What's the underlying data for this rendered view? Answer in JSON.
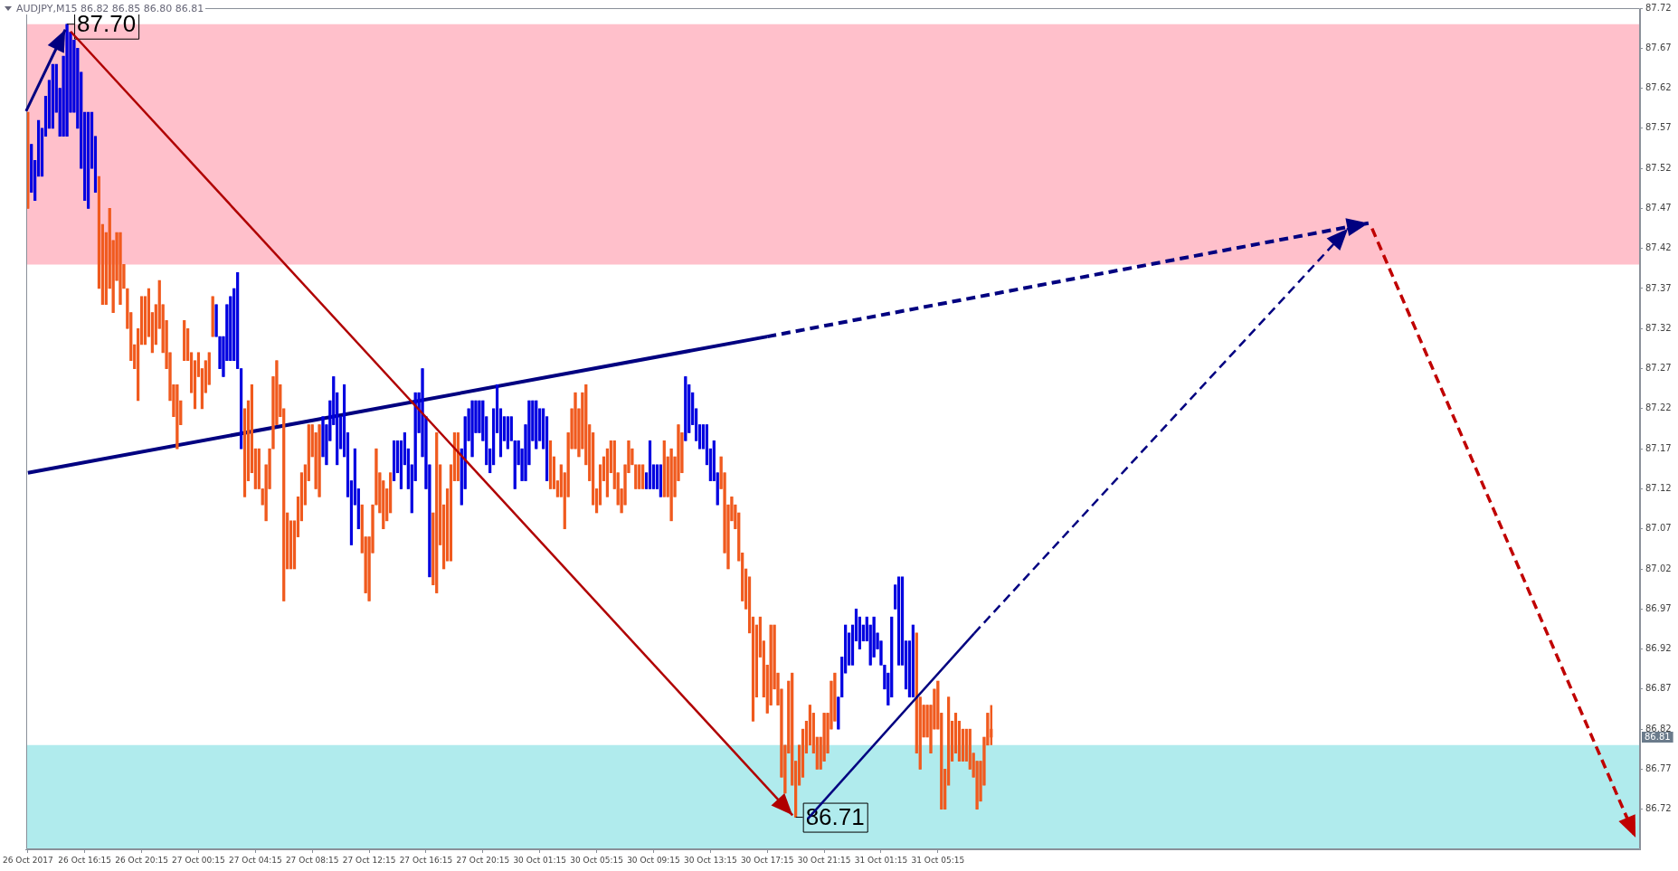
{
  "chart_data": {
    "type": "candlestick",
    "title": "AUDJPY,M15  86.82 86.85 86.80 86.81",
    "categories": [
      "26 Oct 2017",
      null,
      null,
      null,
      null,
      null,
      null,
      null,
      null,
      null,
      null,
      null,
      null,
      null,
      null,
      null,
      "26 Oct 16:15",
      null,
      null,
      null,
      null,
      null,
      null,
      null,
      null,
      null,
      null,
      null,
      null,
      null,
      null,
      null,
      "26 Oct 20:15",
      null,
      null,
      null,
      null,
      null,
      null,
      null,
      null,
      null,
      null,
      null,
      null,
      null,
      null,
      null,
      "27 Oct 00:15",
      null,
      null,
      null,
      null,
      null,
      null,
      null,
      null,
      null,
      null,
      null,
      null,
      null,
      null,
      null,
      "27 Oct 04:15",
      null,
      null,
      null,
      null,
      null,
      null,
      null,
      null,
      null,
      null,
      null,
      null,
      null,
      null,
      null,
      "27 Oct 08:15",
      null,
      null,
      null,
      null,
      null,
      null,
      null,
      null,
      null,
      null,
      null,
      null,
      null,
      null,
      null,
      "27 Oct 12:15",
      null,
      null,
      null,
      null,
      null,
      null,
      null,
      null,
      null,
      null,
      null,
      null,
      null,
      null,
      null,
      "27 Oct 16:15",
      null,
      null,
      null,
      null,
      null,
      null,
      null,
      null,
      null,
      null,
      null,
      null,
      null,
      null,
      null,
      "27 Oct 20:15",
      null,
      null,
      null,
      null,
      null,
      null,
      null,
      null,
      null,
      null,
      null,
      null,
      null,
      null,
      null,
      "30 Oct 01:15",
      null,
      null,
      null,
      null,
      null,
      null,
      null,
      null,
      null,
      null,
      null,
      null,
      null,
      null,
      null,
      "30 Oct 05:15",
      null,
      null,
      null,
      null,
      null,
      null,
      null,
      null,
      null,
      null,
      null,
      null,
      null,
      null,
      null,
      "30 Oct 09:15",
      null,
      null,
      null,
      null,
      null,
      null,
      null,
      null,
      null,
      null,
      null,
      null,
      null,
      null,
      null,
      "30 Oct 13:15",
      null,
      null,
      null,
      null,
      null,
      null,
      null,
      null,
      null,
      null,
      null,
      null,
      null,
      null,
      null,
      "30 Oct 17:15",
      null,
      null,
      null,
      null,
      null,
      null,
      null,
      null,
      null,
      null,
      null,
      null,
      null,
      null,
      null,
      "30 Oct 21:15",
      null,
      null,
      null,
      null,
      null,
      null,
      null,
      null,
      null,
      null,
      null,
      null,
      null,
      null,
      null,
      "31 Oct 01:15",
      null,
      null,
      null,
      null,
      null,
      null,
      null,
      null,
      null,
      null,
      null,
      null,
      null,
      null,
      null,
      "31 Oct 05:15",
      null,
      null,
      null,
      null,
      null,
      null,
      null,
      null,
      null,
      null,
      null,
      null,
      null,
      null,
      null,
      null,
      null,
      null,
      null,
      null,
      null,
      null,
      null,
      null,
      null,
      null,
      null,
      null,
      null,
      null,
      null,
      null,
      null,
      null,
      null,
      null,
      null,
      null,
      null,
      null,
      null,
      null,
      null,
      null,
      null,
      null,
      null,
      null,
      null,
      null,
      null,
      null,
      null,
      null,
      null,
      null,
      null,
      null,
      null,
      null,
      null,
      null,
      null,
      null,
      null,
      null,
      null,
      null,
      null,
      null,
      null,
      null,
      null,
      null,
      null,
      null,
      null,
      null,
      null,
      null,
      null,
      null,
      null,
      null,
      null,
      null,
      null,
      null,
      null,
      null,
      null,
      null,
      null,
      null,
      null,
      null,
      null,
      null,
      null,
      null,
      null,
      null,
      null,
      null,
      null,
      null,
      null,
      null,
      null,
      null,
      null,
      null,
      null,
      null,
      null,
      null,
      null,
      null,
      null,
      null,
      null,
      null,
      null,
      null,
      null,
      null,
      null,
      null,
      null,
      null,
      null,
      null,
      null,
      null,
      null,
      null,
      null,
      null,
      null,
      null,
      null,
      null,
      null,
      null,
      null,
      null,
      null,
      null,
      null,
      null,
      null,
      null,
      null,
      null,
      null,
      null,
      null,
      null,
      null,
      null,
      null,
      null,
      null,
      null,
      null,
      null,
      null,
      null,
      null,
      null,
      null,
      null,
      null,
      null,
      null,
      null,
      null,
      null,
      null,
      null,
      null,
      null,
      null,
      null,
      null,
      null,
      null,
      null,
      null,
      null,
      null,
      null,
      null,
      null,
      null,
      null,
      null
    ],
    "ylim": [
      86.67,
      87.72
    ],
    "yticks": [
      86.72,
      86.77,
      86.82,
      86.87,
      86.92,
      86.97,
      87.02,
      87.07,
      87.12,
      87.17,
      87.22,
      87.27,
      87.32,
      87.37,
      87.42,
      87.47,
      87.52,
      87.57,
      87.62,
      87.67,
      87.72
    ],
    "bands": [
      {
        "axis": "y",
        "from": 87.4,
        "to": 87.7,
        "color": "#ffc0cb"
      },
      {
        "axis": "y",
        "from": 86.67,
        "to": 86.8,
        "color": "#b0ebed"
      }
    ],
    "series": [
      {
        "type": "line",
        "color": "#000080",
        "x": [
          "26 Oct 2017",
          "30 Oct 17:15"
        ],
        "values": [
          87.14,
          87.31
        ]
      }
    ],
    "annotations": [
      {
        "text": "87.70",
        "y": 87.7
      },
      "86.71",
      "86.81"
    ],
    "ohlc": [
      [
        87.59,
        87.59,
        87.47,
        87.47
      ],
      [
        87.49,
        87.55,
        87.49,
        87.55
      ],
      [
        87.48,
        87.53,
        87.48,
        87.53
      ],
      [
        87.51,
        87.58,
        87.51,
        87.58
      ],
      [
        87.51,
        87.57,
        87.51,
        87.57
      ],
      [
        87.56,
        87.61,
        87.56,
        87.61
      ],
      [
        87.57,
        87.63,
        87.57,
        87.63
      ],
      [
        87.57,
        87.65,
        87.57,
        87.65
      ],
      [
        87.59,
        87.65,
        87.59,
        87.65
      ],
      [
        87.56,
        87.62,
        87.56,
        87.62
      ],
      [
        87.56,
        87.66,
        87.56,
        87.66
      ],
      [
        87.56,
        87.7,
        87.56,
        87.7
      ],
      [
        87.59,
        87.69,
        87.59,
        87.69
      ],
      [
        87.59,
        87.68,
        87.59,
        87.68
      ],
      [
        87.57,
        87.67,
        87.57,
        87.67
      ],
      [
        87.52,
        87.64,
        87.52,
        87.64
      ],
      [
        87.48,
        87.59,
        87.48,
        87.59
      ],
      [
        87.47,
        87.59,
        87.47,
        87.59
      ],
      [
        87.52,
        87.59,
        87.52,
        87.59
      ],
      [
        87.49,
        87.56,
        87.49,
        87.56
      ],
      [
        87.51,
        87.51,
        87.37,
        87.37
      ],
      [
        87.45,
        87.45,
        87.35,
        87.35
      ],
      [
        87.44,
        87.44,
        87.35,
        87.35
      ],
      [
        87.47,
        87.47,
        87.37,
        87.37
      ],
      [
        87.43,
        87.43,
        87.34,
        87.34
      ],
      [
        87.44,
        87.44,
        87.38,
        87.38
      ],
      [
        87.44,
        87.44,
        87.35,
        87.35
      ],
      [
        87.4,
        87.4,
        87.37,
        87.37
      ],
      [
        87.37,
        87.37,
        87.32,
        87.32
      ],
      [
        87.34,
        87.34,
        87.28,
        87.28
      ],
      [
        87.3,
        87.3,
        87.27,
        87.27
      ],
      [
        87.32,
        87.32,
        87.23,
        87.23
      ],
      [
        87.36,
        87.36,
        87.3,
        87.3
      ],
      [
        87.36,
        87.36,
        87.3,
        87.3
      ],
      [
        87.37,
        87.37,
        87.31,
        87.31
      ],
      [
        87.34,
        87.34,
        87.29,
        87.29
      ],
      [
        87.35,
        87.35,
        87.3,
        87.3
      ],
      [
        87.38,
        87.38,
        87.32,
        87.32
      ],
      [
        87.35,
        87.35,
        87.29,
        87.29
      ],
      [
        87.33,
        87.33,
        87.27,
        87.27
      ],
      [
        87.29,
        87.29,
        87.23,
        87.23
      ],
      [
        87.25,
        87.25,
        87.21,
        87.21
      ],
      [
        87.25,
        87.25,
        87.17,
        87.17
      ],
      [
        87.23,
        87.23,
        87.2,
        87.2
      ],
      [
        87.33,
        87.33,
        87.28,
        87.28
      ],
      [
        87.32,
        87.32,
        87.28,
        87.28
      ],
      [
        87.29,
        87.29,
        87.24,
        87.24
      ],
      [
        87.28,
        87.28,
        87.22,
        87.22
      ],
      [
        87.29,
        87.29,
        87.26,
        87.26
      ],
      [
        87.27,
        87.27,
        87.22,
        87.22
      ],
      [
        87.28,
        87.28,
        87.24,
        87.24
      ],
      [
        87.29,
        87.29,
        87.25,
        87.25
      ],
      [
        87.36,
        87.36,
        87.31,
        87.31
      ],
      [
        87.31,
        87.35,
        87.31,
        87.35
      ],
      [
        87.27,
        87.31,
        87.27,
        87.31
      ],
      [
        87.26,
        87.31,
        87.26,
        87.31
      ],
      [
        87.28,
        87.35,
        87.28,
        87.35
      ],
      [
        87.28,
        87.36,
        87.28,
        87.36
      ],
      [
        87.28,
        87.37,
        87.28,
        87.37
      ],
      [
        87.27,
        87.39,
        87.27,
        87.39
      ],
      [
        87.17,
        87.27,
        87.17,
        87.27
      ],
      [
        87.22,
        87.22,
        87.11,
        87.11
      ],
      [
        87.23,
        87.23,
        87.13,
        87.13
      ],
      [
        87.25,
        87.25,
        87.14,
        87.14
      ],
      [
        87.17,
        87.17,
        87.12,
        87.12
      ],
      [
        87.17,
        87.17,
        87.12,
        87.12
      ],
      [
        87.12,
        87.12,
        87.1,
        87.1
      ],
      [
        87.15,
        87.15,
        87.08,
        87.08
      ],
      [
        87.17,
        87.17,
        87.12,
        87.12
      ],
      [
        87.26,
        87.26,
        87.17,
        87.17
      ],
      [
        87.28,
        87.28,
        87.2,
        87.2
      ],
      [
        87.25,
        87.25,
        87.21,
        87.21
      ],
      [
        87.22,
        87.22,
        86.98,
        86.98
      ],
      [
        87.09,
        87.09,
        87.02,
        87.02
      ],
      [
        87.08,
        87.08,
        87.02,
        87.02
      ],
      [
        87.08,
        87.08,
        87.02,
        87.02
      ],
      [
        87.11,
        87.11,
        87.06,
        87.06
      ],
      [
        87.14,
        87.14,
        87.08,
        87.08
      ],
      [
        87.15,
        87.15,
        87.1,
        87.1
      ],
      [
        87.2,
        87.2,
        87.13,
        87.13
      ],
      [
        87.2,
        87.2,
        87.16,
        87.16
      ],
      [
        87.19,
        87.19,
        87.12,
        87.12
      ],
      [
        87.2,
        87.2,
        87.11,
        87.11
      ],
      [
        87.16,
        87.21,
        87.16,
        87.21
      ],
      [
        87.15,
        87.2,
        87.15,
        87.2
      ],
      [
        87.18,
        87.23,
        87.18,
        87.23
      ],
      [
        87.2,
        87.26,
        87.2,
        87.26
      ],
      [
        87.15,
        87.24,
        87.15,
        87.24
      ],
      [
        87.17,
        87.21,
        87.17,
        87.21
      ],
      [
        87.16,
        87.25,
        87.16,
        87.25
      ],
      [
        87.11,
        87.19,
        87.11,
        87.19
      ],
      [
        87.05,
        87.13,
        87.05,
        87.13
      ],
      [
        87.1,
        87.17,
        87.1,
        87.17
      ],
      [
        87.07,
        87.12,
        87.07,
        87.12
      ],
      [
        87.1,
        87.1,
        87.04,
        87.04
      ],
      [
        87.06,
        87.06,
        86.99,
        86.99
      ],
      [
        87.06,
        87.06,
        86.98,
        86.98
      ],
      [
        87.1,
        87.1,
        87.04,
        87.04
      ],
      [
        87.17,
        87.17,
        87.1,
        87.1
      ],
      [
        87.14,
        87.14,
        87.09,
        87.09
      ],
      [
        87.13,
        87.13,
        87.07,
        87.07
      ],
      [
        87.12,
        87.12,
        87.08,
        87.08
      ],
      [
        87.14,
        87.14,
        87.09,
        87.09
      ],
      [
        87.13,
        87.18,
        87.13,
        87.18
      ],
      [
        87.14,
        87.18,
        87.14,
        87.18
      ],
      [
        87.12,
        87.18,
        87.12,
        87.18
      ],
      [
        87.15,
        87.19,
        87.15,
        87.19
      ],
      [
        87.12,
        87.17,
        87.12,
        87.17
      ],
      [
        87.09,
        87.15,
        87.09,
        87.15
      ],
      [
        87.13,
        87.24,
        87.13,
        87.24
      ],
      [
        87.19,
        87.24,
        87.19,
        87.24
      ],
      [
        87.16,
        87.27,
        87.16,
        87.27
      ],
      [
        87.12,
        87.21,
        87.12,
        87.21
      ],
      [
        87.01,
        87.15,
        87.01,
        87.15
      ],
      [
        87.09,
        87.09,
        87.0,
        87.0
      ],
      [
        87.19,
        87.19,
        86.99,
        86.99
      ],
      [
        87.15,
        87.15,
        87.05,
        87.05
      ],
      [
        87.1,
        87.1,
        87.02,
        87.02
      ],
      [
        87.12,
        87.12,
        87.03,
        87.03
      ],
      [
        87.15,
        87.15,
        87.03,
        87.03
      ],
      [
        87.19,
        87.19,
        87.13,
        87.13
      ],
      [
        87.19,
        87.19,
        87.13,
        87.13
      ],
      [
        87.1,
        87.17,
        87.1,
        87.17
      ],
      [
        87.12,
        87.21,
        87.12,
        87.21
      ],
      [
        87.18,
        87.22,
        87.18,
        87.22
      ],
      [
        87.16,
        87.23,
        87.16,
        87.23
      ],
      [
        87.19,
        87.23,
        87.19,
        87.23
      ],
      [
        87.19,
        87.23,
        87.19,
        87.23
      ],
      [
        87.18,
        87.23,
        87.18,
        87.23
      ],
      [
        87.15,
        87.21,
        87.15,
        87.21
      ],
      [
        87.14,
        87.17,
        87.14,
        87.17
      ],
      [
        87.15,
        87.22,
        87.15,
        87.22
      ],
      [
        87.19,
        87.25,
        87.19,
        87.25
      ],
      [
        87.16,
        87.22,
        87.16,
        87.22
      ],
      [
        87.18,
        87.21,
        87.18,
        87.21
      ],
      [
        87.17,
        87.21,
        87.17,
        87.21
      ],
      [
        87.18,
        87.21,
        87.18,
        87.21
      ],
      [
        87.12,
        87.18,
        87.12,
        87.18
      ],
      [
        87.15,
        87.18,
        87.15,
        87.18
      ],
      [
        87.13,
        87.17,
        87.13,
        87.17
      ],
      [
        87.13,
        87.2,
        87.13,
        87.2
      ],
      [
        87.15,
        87.23,
        87.15,
        87.23
      ],
      [
        87.18,
        87.23,
        87.18,
        87.23
      ],
      [
        87.17,
        87.23,
        87.17,
        87.23
      ],
      [
        87.18,
        87.22,
        87.18,
        87.22
      ],
      [
        87.17,
        87.22,
        87.17,
        87.22
      ],
      [
        87.13,
        87.21,
        87.13,
        87.21
      ],
      [
        87.18,
        87.18,
        87.12,
        87.12
      ],
      [
        87.16,
        87.16,
        87.12,
        87.12
      ],
      [
        87.13,
        87.13,
        87.11,
        87.11
      ],
      [
        87.15,
        87.15,
        87.11,
        87.11
      ],
      [
        87.14,
        87.14,
        87.07,
        87.07
      ],
      [
        87.19,
        87.19,
        87.11,
        87.11
      ],
      [
        87.22,
        87.22,
        87.17,
        87.17
      ],
      [
        87.24,
        87.24,
        87.17,
        87.17
      ],
      [
        87.22,
        87.22,
        87.16,
        87.16
      ],
      [
        87.24,
        87.24,
        87.17,
        87.17
      ],
      [
        87.25,
        87.25,
        87.15,
        87.15
      ],
      [
        87.2,
        87.2,
        87.13,
        87.13
      ],
      [
        87.19,
        87.19,
        87.1,
        87.1
      ],
      [
        87.12,
        87.12,
        87.09,
        87.09
      ],
      [
        87.15,
        87.15,
        87.1,
        87.1
      ],
      [
        87.16,
        87.16,
        87.13,
        87.13
      ],
      [
        87.17,
        87.17,
        87.11,
        87.11
      ],
      [
        87.18,
        87.18,
        87.14,
        87.14
      ],
      [
        87.18,
        87.18,
        87.12,
        87.12
      ],
      [
        87.14,
        87.14,
        87.1,
        87.1
      ],
      [
        87.12,
        87.12,
        87.09,
        87.09
      ],
      [
        87.15,
        87.15,
        87.1,
        87.1
      ],
      [
        87.18,
        87.18,
        87.14,
        87.14
      ],
      [
        87.17,
        87.17,
        87.15,
        87.15
      ],
      [
        87.15,
        87.15,
        87.12,
        87.12
      ],
      [
        87.15,
        87.15,
        87.12,
        87.12
      ],
      [
        87.15,
        87.15,
        87.12,
        87.12
      ],
      [
        87.12,
        87.14,
        87.12,
        87.14
      ],
      [
        87.12,
        87.18,
        87.12,
        87.18
      ],
      [
        87.12,
        87.15,
        87.12,
        87.15
      ],
      [
        87.12,
        87.15,
        87.12,
        87.15
      ],
      [
        87.11,
        87.15,
        87.11,
        87.15
      ],
      [
        87.18,
        87.18,
        87.11,
        87.11
      ],
      [
        87.16,
        87.16,
        87.11,
        87.11
      ],
      [
        87.17,
        87.17,
        87.08,
        87.08
      ],
      [
        87.16,
        87.16,
        87.11,
        87.11
      ],
      [
        87.2,
        87.2,
        87.13,
        87.13
      ],
      [
        87.19,
        87.19,
        87.14,
        87.14
      ],
      [
        87.18,
        87.26,
        87.18,
        87.26
      ],
      [
        87.19,
        87.25,
        87.19,
        87.25
      ],
      [
        87.2,
        87.24,
        87.2,
        87.24
      ],
      [
        87.18,
        87.22,
        87.18,
        87.22
      ],
      [
        87.17,
        87.2,
        87.17,
        87.2
      ],
      [
        87.17,
        87.2,
        87.17,
        87.2
      ],
      [
        87.15,
        87.2,
        87.15,
        87.2
      ],
      [
        87.13,
        87.17,
        87.13,
        87.17
      ],
      [
        87.13,
        87.18,
        87.13,
        87.18
      ],
      [
        87.1,
        87.14,
        87.1,
        87.14
      ],
      [
        87.16,
        87.16,
        87.12,
        87.12
      ],
      [
        87.14,
        87.14,
        87.04,
        87.04
      ],
      [
        87.1,
        87.1,
        87.02,
        87.02
      ],
      [
        87.11,
        87.11,
        87.08,
        87.08
      ],
      [
        87.1,
        87.1,
        87.07,
        87.07
      ],
      [
        87.09,
        87.09,
        87.03,
        87.03
      ],
      [
        87.04,
        87.04,
        86.98,
        86.98
      ],
      [
        87.02,
        87.02,
        86.97,
        86.97
      ],
      [
        87.01,
        87.01,
        86.94,
        86.94
      ],
      [
        86.96,
        86.96,
        86.83,
        86.83
      ],
      [
        86.95,
        86.95,
        86.86,
        86.86
      ],
      [
        86.96,
        86.96,
        86.91,
        86.91
      ],
      [
        86.93,
        86.93,
        86.86,
        86.86
      ],
      [
        86.9,
        86.9,
        86.84,
        86.84
      ],
      [
        86.95,
        86.95,
        86.85,
        86.85
      ],
      [
        86.95,
        86.95,
        86.87,
        86.87
      ],
      [
        86.89,
        86.89,
        86.85,
        86.85
      ],
      [
        86.87,
        86.87,
        86.76,
        86.76
      ],
      [
        86.8,
        86.8,
        86.74,
        86.74
      ],
      [
        86.88,
        86.88,
        86.79,
        86.79
      ],
      [
        86.89,
        86.89,
        86.75,
        86.75
      ],
      [
        86.78,
        86.78,
        86.71,
        86.71
      ],
      [
        86.8,
        86.8,
        86.75,
        86.75
      ],
      [
        86.82,
        86.82,
        86.76,
        86.76
      ],
      [
        86.83,
        86.83,
        86.79,
        86.79
      ],
      [
        86.85,
        86.85,
        86.8,
        86.8
      ],
      [
        86.84,
        86.84,
        86.79,
        86.79
      ],
      [
        86.81,
        86.81,
        86.77,
        86.77
      ],
      [
        86.81,
        86.81,
        86.77,
        86.77
      ],
      [
        86.84,
        86.84,
        86.78,
        86.78
      ],
      [
        86.84,
        86.84,
        86.79,
        86.79
      ],
      [
        86.88,
        86.88,
        86.82,
        86.82
      ],
      [
        86.89,
        86.89,
        86.83,
        86.83
      ],
      [
        86.82,
        86.86,
        86.82,
        86.86
      ],
      [
        86.86,
        86.91,
        86.86,
        86.91
      ],
      [
        86.89,
        86.95,
        86.89,
        86.95
      ],
      [
        86.9,
        86.94,
        86.9,
        86.94
      ],
      [
        86.9,
        86.95,
        86.9,
        86.95
      ],
      [
        86.93,
        86.97,
        86.93,
        86.97
      ],
      [
        86.92,
        86.96,
        86.92,
        86.96
      ],
      [
        86.93,
        86.95,
        86.93,
        86.95
      ],
      [
        86.93,
        86.96,
        86.93,
        86.96
      ],
      [
        86.9,
        86.95,
        86.9,
        86.95
      ],
      [
        86.91,
        86.96,
        86.91,
        86.96
      ],
      [
        86.92,
        86.94,
        86.92,
        86.94
      ],
      [
        86.9,
        86.93,
        86.9,
        86.93
      ],
      [
        86.87,
        86.9,
        86.87,
        86.9
      ],
      [
        86.85,
        86.89,
        86.85,
        86.89
      ],
      [
        86.86,
        86.96,
        86.86,
        86.96
      ],
      [
        86.97,
        87.0,
        86.97,
        87.0
      ],
      [
        86.9,
        87.01,
        86.9,
        87.01
      ],
      [
        86.9,
        87.01,
        86.9,
        87.01
      ],
      [
        86.87,
        86.93,
        86.87,
        86.93
      ],
      [
        86.86,
        86.93,
        86.86,
        86.93
      ],
      [
        86.86,
        86.95,
        86.86,
        86.95
      ],
      [
        86.94,
        86.94,
        86.79,
        86.79
      ],
      [
        86.86,
        86.86,
        86.77,
        86.77
      ],
      [
        86.85,
        86.85,
        86.81,
        86.81
      ],
      [
        86.85,
        86.85,
        86.81,
        86.81
      ],
      [
        86.85,
        86.85,
        86.79,
        86.79
      ],
      [
        86.87,
        86.87,
        86.82,
        86.82
      ],
      [
        86.88,
        86.88,
        86.82,
        86.82
      ],
      [
        86.84,
        86.84,
        86.72,
        86.72
      ],
      [
        86.77,
        86.77,
        86.72,
        86.72
      ],
      [
        86.86,
        86.86,
        86.75,
        86.75
      ],
      [
        86.83,
        86.83,
        86.78,
        86.78
      ],
      [
        86.84,
        86.84,
        86.79,
        86.79
      ],
      [
        86.83,
        86.83,
        86.78,
        86.78
      ],
      [
        86.82,
        86.82,
        86.78,
        86.78
      ],
      [
        86.82,
        86.82,
        86.78,
        86.78
      ],
      [
        86.82,
        86.82,
        86.77,
        86.77
      ],
      [
        86.79,
        86.79,
        86.76,
        86.76
      ],
      [
        86.78,
        86.78,
        86.72,
        86.72
      ],
      [
        86.78,
        86.78,
        86.73,
        86.73
      ],
      [
        86.81,
        86.81,
        86.75,
        86.75
      ],
      [
        86.84,
        86.84,
        86.8,
        86.8
      ],
      [
        86.82,
        86.85,
        86.8,
        86.81
      ],
      null,
      null,
      null,
      null,
      null,
      null,
      null,
      null,
      null,
      null,
      null,
      null,
      null,
      null,
      null,
      null,
      null,
      null,
      null,
      null,
      null,
      null,
      null,
      null,
      null,
      null,
      null,
      null,
      null,
      null,
      null,
      null,
      null,
      null,
      null,
      null,
      null,
      null,
      null,
      null,
      null,
      null,
      null,
      null,
      null,
      null,
      null,
      null,
      null,
      null,
      null,
      null,
      null,
      null,
      null,
      null,
      null,
      null,
      null,
      null,
      null,
      null,
      null,
      null,
      null,
      null,
      null,
      null,
      null,
      null,
      null,
      null,
      null,
      null,
      null,
      null,
      null,
      null,
      null,
      null,
      null,
      null,
      null,
      null,
      null,
      null,
      null,
      null,
      null,
      null,
      null,
      null,
      null,
      null,
      null,
      null,
      null,
      null,
      null,
      null,
      null,
      null,
      null,
      null,
      null,
      null,
      null,
      null,
      null,
      null,
      null,
      null,
      null,
      null,
      null,
      null,
      null,
      null,
      null,
      null,
      null,
      null,
      null,
      null,
      null,
      null,
      null,
      null,
      null,
      null,
      null,
      null,
      null,
      null,
      null,
      null,
      null,
      null,
      null,
      null,
      null,
      null,
      null,
      null,
      null,
      null,
      null,
      null,
      null,
      null,
      null,
      null,
      null,
      null,
      null,
      null,
      null,
      null,
      null,
      null,
      null,
      null,
      null,
      null,
      null,
      null,
      null,
      null,
      null,
      null,
      null,
      null,
      null,
      null,
      null,
      null,
      null,
      null,
      null,
      null,
      null,
      null
    ],
    "colors": [
      "#f05a1e",
      "#0000e0",
      "#0000e0",
      "#0000e0",
      "#0000e0",
      "#0000e0",
      "#0000e0",
      "#0000e0",
      "#0000e0",
      "#0000e0",
      "#0000e0",
      "#0000e0",
      "#0000e0",
      "#0000e0",
      "#0000e0",
      "#0000e0",
      "#0000e0",
      "#0000e0",
      "#0000e0",
      "#0000e0",
      "#f05a1e",
      "#f05a1e",
      "#f05a1e",
      "#f05a1e",
      "#f05a1e",
      "#f05a1e",
      "#f05a1e",
      "#f05a1e",
      "#f05a1e",
      "#f05a1e",
      "#f05a1e",
      "#f05a1e",
      "#f05a1e",
      "#f05a1e",
      "#f05a1e",
      "#f05a1e",
      "#f05a1e",
      "#f05a1e",
      "#f05a1e",
      "#f05a1e",
      "#f05a1e",
      "#f05a1e",
      "#f05a1e",
      "#f05a1e",
      "#f05a1e",
      "#f05a1e",
      "#f05a1e",
      "#f05a1e",
      "#f05a1e",
      "#f05a1e",
      "#f05a1e",
      "#f05a1e",
      "#f05a1e",
      "#0000e0",
      "#0000e0",
      "#0000e0",
      "#0000e0",
      "#0000e0",
      "#0000e0",
      "#0000e0",
      "#0000e0",
      "#f05a1e",
      "#f05a1e",
      "#f05a1e",
      "#f05a1e",
      "#f05a1e",
      "#f05a1e",
      "#f05a1e",
      "#f05a1e",
      "#f05a1e",
      "#f05a1e",
      "#f05a1e",
      "#f05a1e",
      "#f05a1e",
      "#f05a1e",
      "#f05a1e",
      "#f05a1e",
      "#f05a1e",
      "#f05a1e",
      "#f05a1e",
      "#f05a1e",
      "#f05a1e",
      "#f05a1e",
      "#0000e0",
      "#0000e0",
      "#0000e0",
      "#0000e0",
      "#0000e0",
      "#0000e0",
      "#0000e0",
      "#0000e0",
      "#0000e0",
      "#0000e0",
      "#0000e0",
      "#f05a1e",
      "#f05a1e",
      "#f05a1e",
      "#f05a1e",
      "#f05a1e",
      "#f05a1e",
      "#f05a1e",
      "#f05a1e",
      "#f05a1e",
      "#0000e0",
      "#0000e0",
      "#0000e0",
      "#0000e0",
      "#0000e0",
      "#0000e0",
      "#0000e0",
      "#0000e0",
      "#0000e0",
      "#0000e0",
      "#0000e0",
      "#f05a1e",
      "#f05a1e",
      "#f05a1e",
      "#f05a1e",
      "#f05a1e",
      "#f05a1e",
      "#f05a1e",
      "#f05a1e",
      "#0000e0",
      "#0000e0",
      "#0000e0",
      "#0000e0",
      "#0000e0",
      "#0000e0",
      "#0000e0",
      "#0000e0",
      "#0000e0",
      "#0000e0",
      "#0000e0",
      "#0000e0",
      "#0000e0",
      "#0000e0",
      "#0000e0",
      "#0000e0",
      "#0000e0",
      "#0000e0",
      "#0000e0",
      "#0000e0",
      "#0000e0",
      "#0000e0",
      "#0000e0",
      "#0000e0",
      "#0000e0",
      "#f05a1e",
      "#f05a1e",
      "#f05a1e",
      "#f05a1e",
      "#f05a1e",
      "#f05a1e",
      "#f05a1e",
      "#f05a1e",
      "#f05a1e",
      "#f05a1e",
      "#f05a1e",
      "#f05a1e",
      "#f05a1e",
      "#f05a1e",
      "#f05a1e",
      "#f05a1e",
      "#f05a1e",
      "#f05a1e",
      "#f05a1e",
      "#f05a1e",
      "#f05a1e",
      "#f05a1e",
      "#f05a1e",
      "#f05a1e",
      "#f05a1e",
      "#f05a1e",
      "#f05a1e",
      "#0000e0",
      "#0000e0",
      "#0000e0",
      "#0000e0",
      "#0000e0",
      "#f05a1e",
      "#f05a1e",
      "#f05a1e",
      "#f05a1e",
      "#f05a1e",
      "#f05a1e",
      "#0000e0",
      "#0000e0",
      "#0000e0",
      "#0000e0",
      "#0000e0",
      "#0000e0",
      "#0000e0",
      "#0000e0",
      "#0000e0",
      "#0000e0",
      "#f05a1e",
      "#f05a1e",
      "#f05a1e",
      "#f05a1e",
      "#f05a1e",
      "#f05a1e",
      "#f05a1e",
      "#f05a1e",
      "#f05a1e",
      "#f05a1e",
      "#f05a1e",
      "#f05a1e",
      "#f05a1e",
      "#f05a1e",
      "#f05a1e",
      "#f05a1e",
      "#f05a1e",
      "#f05a1e",
      "#f05a1e",
      "#f05a1e",
      "#f05a1e",
      "#f05a1e",
      "#f05a1e",
      "#f05a1e",
      "#f05a1e",
      "#f05a1e",
      "#f05a1e",
      "#f05a1e",
      "#f05a1e",
      "#f05a1e",
      "#f05a1e",
      "#f05a1e",
      "#f05a1e",
      "#0000e0",
      "#0000e0",
      "#0000e0",
      "#0000e0",
      "#0000e0",
      "#0000e0",
      "#0000e0",
      "#0000e0",
      "#0000e0",
      "#0000e0",
      "#0000e0",
      "#0000e0",
      "#0000e0",
      "#0000e0",
      "#0000e0",
      "#0000e0",
      "#0000e0",
      "#0000e0",
      "#0000e0",
      "#0000e0",
      "#0000e0",
      "#0000e0",
      "#f05a1e",
      "#f05a1e",
      "#f05a1e",
      "#f05a1e",
      "#f05a1e",
      "#f05a1e",
      "#f05a1e",
      "#f05a1e",
      "#f05a1e",
      "#f05a1e",
      "#f05a1e",
      "#f05a1e",
      "#f05a1e",
      "#f05a1e",
      "#f05a1e",
      "#f05a1e",
      "#f05a1e",
      "#f05a1e",
      "#f05a1e",
      "#f05a1e",
      "#f05a1e",
      "#f05a1e",
      null,
      null,
      null,
      null,
      null,
      null,
      null,
      null,
      null,
      null,
      null,
      null,
      null,
      null,
      null,
      null,
      null,
      null,
      null,
      null,
      null,
      null,
      null,
      null,
      null,
      null,
      null,
      null,
      null,
      null,
      null,
      null,
      null,
      null,
      null,
      null,
      null,
      null,
      null,
      null,
      null,
      null,
      null,
      null,
      null,
      null,
      null,
      null,
      null,
      null,
      null,
      null,
      null,
      null,
      null,
      null,
      null,
      null,
      null,
      null,
      null,
      null,
      null,
      null,
      null,
      null,
      null,
      null,
      null,
      null,
      null,
      null,
      null,
      null,
      null,
      null,
      null,
      null,
      null,
      null,
      null,
      null,
      null,
      null,
      null,
      null,
      null,
      null,
      null,
      null,
      null,
      null,
      null,
      null,
      null,
      null,
      null,
      null,
      null,
      null,
      null,
      null,
      null,
      null,
      null,
      null,
      null,
      null,
      null,
      null,
      null,
      null,
      null,
      null,
      null,
      null,
      null,
      null,
      null,
      null,
      null,
      null,
      null,
      null,
      null,
      null,
      null,
      null,
      null,
      null,
      null,
      null,
      null,
      null,
      null,
      null,
      null,
      null,
      null,
      null,
      null,
      null,
      null,
      null,
      null,
      null,
      null,
      null,
      null,
      null,
      null,
      null,
      null,
      null,
      null,
      null,
      null,
      null,
      null,
      null,
      null,
      null,
      null,
      null,
      null,
      null,
      null,
      null,
      null,
      null,
      null,
      null,
      null,
      null,
      null,
      null,
      null,
      null,
      null,
      null,
      null,
      null
    ]
  }
}
